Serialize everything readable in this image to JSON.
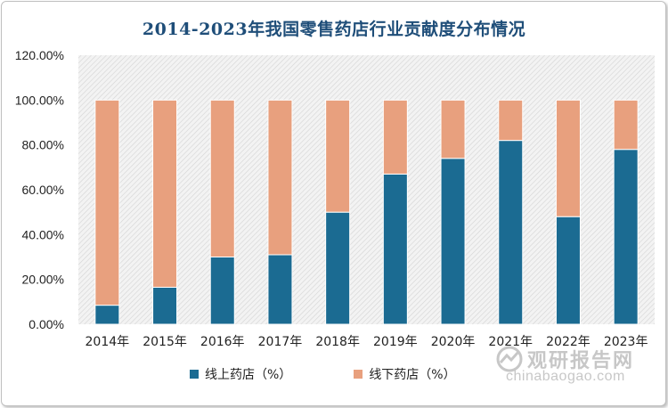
{
  "chart_data": {
    "type": "bar",
    "stacked": true,
    "title": "2014-2023年我国零售药店行业贡献度分布情况",
    "categories": [
      "2014年",
      "2015年",
      "2016年",
      "2017年",
      "2018年",
      "2019年",
      "2020年",
      "2021年",
      "2022年",
      "2023年"
    ],
    "series": [
      {
        "name": "线上药店（%）",
        "color": "#1b6b92",
        "values": [
          8.5,
          16.5,
          30,
          31,
          50,
          67,
          74,
          82,
          48,
          78
        ]
      },
      {
        "name": "线下药店（%）",
        "color": "#e8a07e",
        "values": [
          91.5,
          83.5,
          70,
          69,
          50,
          33,
          26,
          18,
          52,
          22
        ]
      }
    ],
    "y_ticks": [
      "0.00%",
      "20.00%",
      "40.00%",
      "60.00%",
      "80.00%",
      "100.00%",
      "120.00%"
    ],
    "ylim": [
      0,
      120
    ],
    "plot_background": "diagonal hatch",
    "legend_position": "bottom"
  },
  "watermark": {
    "logo_text": "观研报告网",
    "url": "chinabaogao.com"
  }
}
